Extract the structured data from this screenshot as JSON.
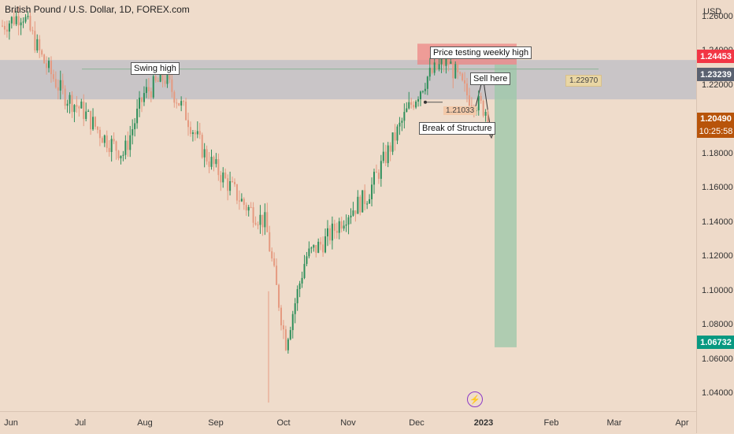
{
  "header": {
    "symbol_title": "British Pound / U.S. Dollar, 1D, FOREX.com"
  },
  "price_axis": {
    "currency": "USD",
    "ticks": [
      "1.26000",
      "1.24000",
      "1.22000",
      "1.20000",
      "1.18000",
      "1.16000",
      "1.14000",
      "1.12000",
      "1.10000",
      "1.08000",
      "1.06000",
      "1.04000"
    ],
    "tags": {
      "stop_price": "1.24453",
      "zone_price": "1.23239",
      "current_price": "1.20490",
      "countdown": "10:25:58",
      "target_price": "1.06732"
    }
  },
  "time_axis": {
    "ticks": [
      "Jun",
      "Jul",
      "Aug",
      "Sep",
      "Oct",
      "Nov",
      "Dec",
      "2023",
      "Feb",
      "Mar",
      "Apr"
    ]
  },
  "annotations": {
    "swing_high": "Swing high",
    "weekly_high": "Price testing weekly high",
    "sell_here": "Sell here",
    "break_of_structure": "Break of Structure",
    "bos_level": "1.21033",
    "line_level": "1.22970"
  },
  "colors": {
    "up": "#2f8f5b",
    "down": "#e59a80",
    "zone": "#a9b3c4",
    "stop": "#ee8080",
    "target": "#9fc8aa",
    "tag_red": "#f23645",
    "tag_grey": "#5a6170",
    "tag_orange": "#b8540a",
    "tag_green": "#089981"
  },
  "icons": {
    "flash": "lightning-icon"
  },
  "chart_data": {
    "type": "candlestick",
    "symbol": "GBP/USD",
    "timeframe": "1D",
    "x_labels": [
      "Jun",
      "Jul",
      "Aug",
      "Sep",
      "Oct",
      "Nov",
      "Dec",
      "2023",
      "Feb",
      "Mar",
      "Apr"
    ],
    "y_range": [
      1.03,
      1.27
    ],
    "series": [
      {
        "name": "price",
        "anchors": [
          {
            "x": "Jun",
            "y": 1.255
          },
          {
            "x": "Jun",
            "y": 1.262
          },
          {
            "x": "Jun",
            "y": 1.235
          },
          {
            "x": "Jun",
            "y": 1.215
          },
          {
            "x": "Jul",
            "y": 1.205
          },
          {
            "x": "Jul",
            "y": 1.19
          },
          {
            "x": "Jul",
            "y": 1.18
          },
          {
            "x": "Aug",
            "y": 1.215
          },
          {
            "x": "Aug",
            "y": 1.225
          },
          {
            "x": "Aug",
            "y": 1.205
          },
          {
            "x": "Aug",
            "y": 1.18
          },
          {
            "x": "Sep",
            "y": 1.165
          },
          {
            "x": "Sep",
            "y": 1.15
          },
          {
            "x": "Sep",
            "y": 1.14
          },
          {
            "x": "Oct",
            "y": 1.07
          },
          {
            "x": "Oct",
            "y": 1.12
          },
          {
            "x": "Oct",
            "y": 1.13
          },
          {
            "x": "Oct",
            "y": 1.145
          },
          {
            "x": "Nov",
            "y": 1.155
          },
          {
            "x": "Nov",
            "y": 1.18
          },
          {
            "x": "Nov",
            "y": 1.205
          },
          {
            "x": "Dec",
            "y": 1.225
          },
          {
            "x": "Dec",
            "y": 1.235
          },
          {
            "x": "Dec",
            "y": 1.214
          },
          {
            "x": "2023",
            "y": 1.2049
          }
        ]
      }
    ],
    "levels": {
      "zone": [
        1.212,
        1.235
      ],
      "stop_zone": [
        1.2323,
        1.2445
      ],
      "target_zone": [
        1.0673,
        1.2323
      ],
      "line": 1.2297,
      "break_of_structure": 1.21033
    }
  }
}
